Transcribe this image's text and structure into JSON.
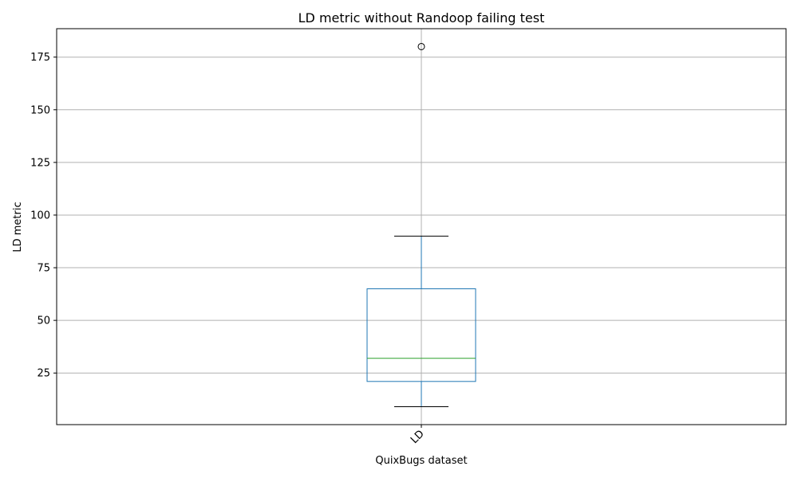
{
  "chart_data": {
    "type": "box",
    "title": "LD metric without Randoop failing test",
    "xlabel": "QuixBugs dataset",
    "ylabel": "LD metric",
    "categories": [
      "LD"
    ],
    "boxes": [
      {
        "category": "LD",
        "whisker_low": 9,
        "q1": 21,
        "median": 32,
        "q3": 65,
        "whisker_high": 90,
        "outliers": [
          180
        ]
      }
    ],
    "yticks": [
      25,
      50,
      75,
      100,
      125,
      150,
      175
    ],
    "ylim": [
      0.5,
      188.5
    ],
    "grid": true,
    "colors": {
      "box": "#1f77b4",
      "median": "#2ca02c",
      "whisker_cap": "#000000",
      "grid": "#b0b0b0"
    }
  }
}
